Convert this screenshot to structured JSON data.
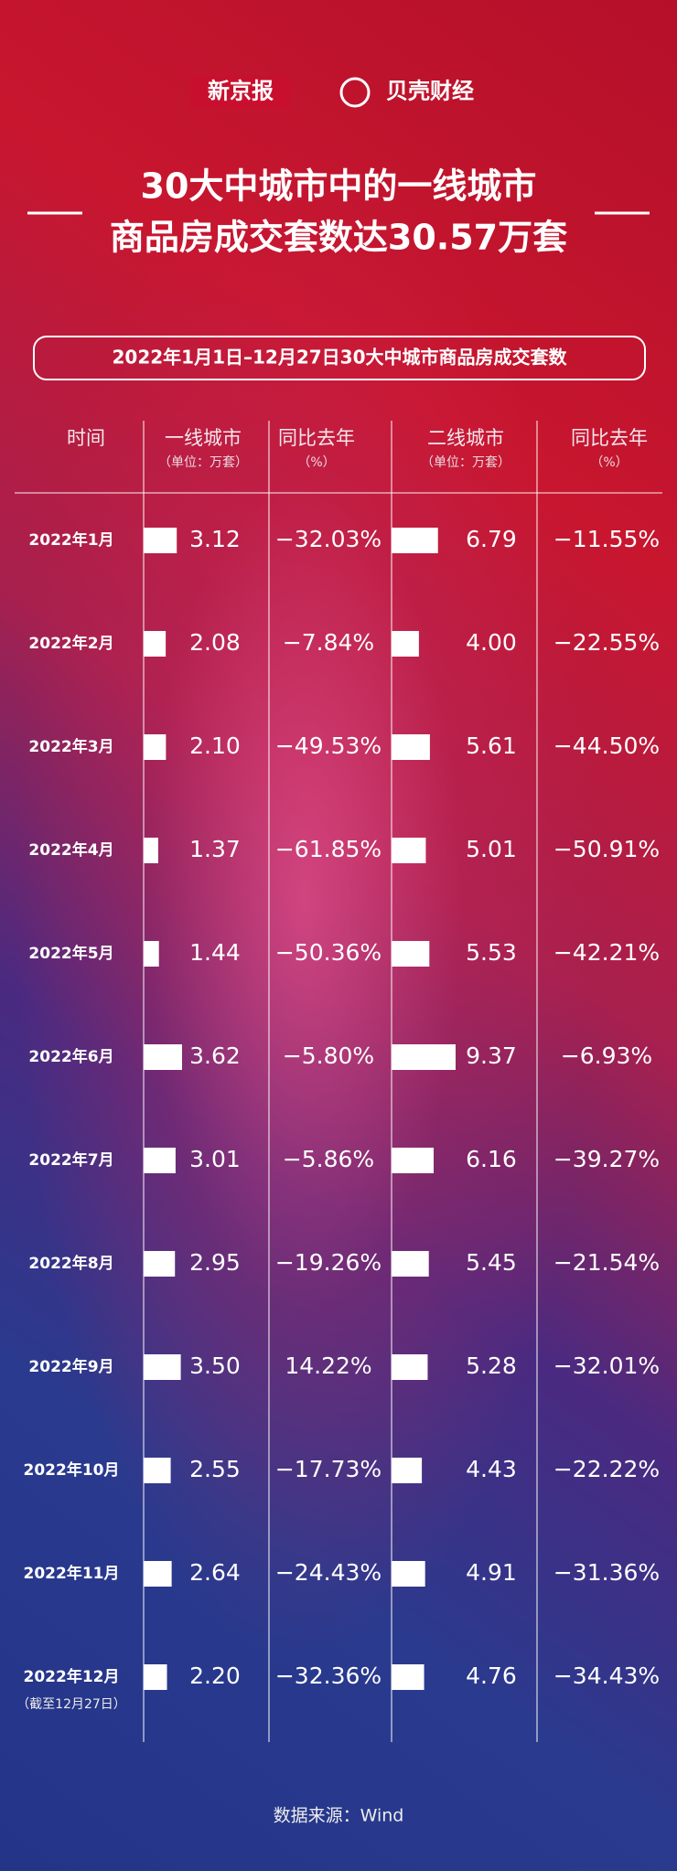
{
  "header": {
    "logos": [
      "新京报",
      "贝壳财经"
    ],
    "title_lines": [
      "30大中城市中的一线城市",
      "商品房成交套数达30.57万套"
    ],
    "subtitle": "2022年1月1日–12月27日30大中城市商品房成交套数"
  },
  "table": {
    "columns": [
      {
        "label": "时间"
      },
      {
        "label": "一线城市",
        "unit": "（单位：万套）"
      },
      {
        "label": "同比去年",
        "unit": "（%）"
      },
      {
        "label": "二线城市",
        "unit": "（单位：万套）"
      },
      {
        "label": "同比去年",
        "unit": "（%）"
      }
    ],
    "months": [
      "2022年1月",
      "2022年2月",
      "2022年3月",
      "2022年4月",
      "2022年5月",
      "2022年6月",
      "2022年7月",
      "2022年8月",
      "2022年9月",
      "2022年10月",
      "2022年11月",
      "2022年12月"
    ],
    "month_note": "（截至12月27日）",
    "tier1": {
      "values": [
        3.12,
        2.08,
        2.1,
        1.37,
        1.44,
        3.62,
        3.01,
        2.95,
        3.5,
        2.55,
        2.64,
        2.2
      ],
      "value_labels": [
        "3.12",
        "2.08",
        "2.10",
        "1.37",
        "1.44",
        "3.62",
        "3.01",
        "2.95",
        "3.50",
        "2.55",
        "2.64",
        "2.20"
      ]
    },
    "tier1_yoy": {
      "values": [
        -32.03,
        -7.84,
        -49.53,
        -61.85,
        -50.36,
        -5.8,
        -5.86,
        -19.26,
        14.22,
        -17.73,
        -24.43,
        -32.36
      ],
      "value_labels": [
        "−32.03%",
        "−7.84%",
        "−49.53%",
        "−61.85%",
        "−50.36%",
        "−5.80%",
        "−5.86%",
        "−19.26%",
        "14.22%",
        "−17.73%",
        "−24.43%",
        "−32.36%"
      ]
    },
    "tier2": {
      "values": [
        6.79,
        4,
        5.61,
        5.01,
        5.53,
        9.37,
        6.16,
        5.45,
        5.28,
        4.43,
        4.91,
        4.76
      ],
      "value_labels": [
        "6.79",
        "4.00",
        "5.61",
        "5.01",
        "5.53",
        "9.37",
        "6.16",
        "5.45",
        "5.28",
        "4.43",
        "4.91",
        "4.76"
      ]
    },
    "tier2_yoy": {
      "values": [
        -11.55,
        -22.55,
        -44.5,
        -50.91,
        -42.21,
        -6.93,
        -39.27,
        -21.54,
        -32.01,
        -22.22,
        -31.36,
        -34.43
      ],
      "value_labels": [
        "−11.55%",
        "−22.55%",
        "−44.50%",
        "−50.91%",
        "−42.21%",
        "−6.93%",
        "−39.27%",
        "−21.54%",
        "−32.01%",
        "−22.22%",
        "−31.36%",
        "−34.43%"
      ]
    }
  },
  "footer": {
    "source": "数据来源：Wind"
  }
}
